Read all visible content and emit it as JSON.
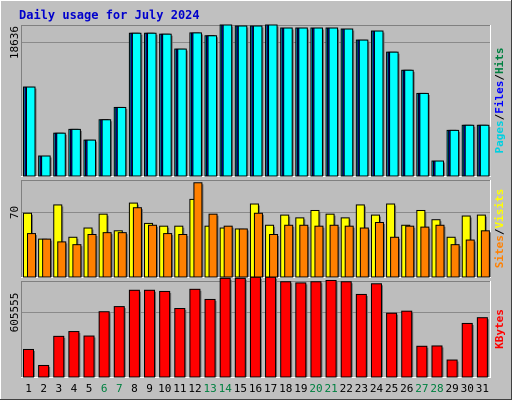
{
  "chart_data": [
    {
      "type": "bar",
      "title": "Daily usage for July 2024",
      "categories": [
        "1",
        "2",
        "3",
        "4",
        "5",
        "6",
        "7",
        "8",
        "9",
        "10",
        "11",
        "12",
        "13",
        "14",
        "15",
        "16",
        "17",
        "18",
        "19",
        "20",
        "21",
        "22",
        "23",
        "24",
        "25",
        "26",
        "27",
        "28",
        "29",
        "30",
        "31"
      ],
      "weekend_days": [
        "6",
        "7",
        "13",
        "14",
        "20",
        "21",
        "27",
        "28"
      ],
      "colors": {
        "title": "#0000cc",
        "weekday_tick": "#000000",
        "weekend_tick": "#008040",
        "background": "#c0c0c0",
        "plot_bg": "#bdbdbd",
        "sep_dark": "#808080"
      },
      "panels": [
        {
          "id": "pages-files-hits",
          "ytick_label": "18636",
          "ytick_value": 18636,
          "ylim": [
            0,
            21000
          ],
          "side_labels": [
            {
              "text": "Pages",
              "color": "#00d0e0"
            },
            {
              "text": "/",
              "color": "#000000"
            },
            {
              "text": "Files",
              "color": "#0000ff"
            },
            {
              "text": "/",
              "color": "#000000"
            },
            {
              "text": "Hits",
              "color": "#008040"
            }
          ],
          "series": [
            {
              "name": "Hits",
              "color": "#00e0ff",
              "values": [
                12370,
                2780,
                5950,
                6480,
                4990,
                7820,
                9530,
                19850,
                19850,
                19720,
                17650,
                19900,
                19500,
                21000,
                20860,
                20860,
                21000,
                20580,
                20580,
                20580,
                20580,
                20440,
                18900,
                20160,
                17220,
                14700,
                11480,
                2080,
                6340,
                7050,
                7050
              ]
            },
            {
              "name": "Files",
              "color": "#0000ff",
              "values": [
                12370,
                2780,
                5950,
                6480,
                4990,
                7820,
                9530,
                19850,
                19850,
                19720,
                17650,
                19900,
                19500,
                21000,
                20860,
                20860,
                21000,
                20580,
                20580,
                20580,
                20580,
                20440,
                18900,
                20160,
                17220,
                14700,
                11480,
                2080,
                6340,
                7050,
                7050
              ]
            },
            {
              "name": "Pages",
              "color": "#00ffff",
              "values": [
                12370,
                2780,
                5950,
                6480,
                4990,
                7820,
                9530,
                19850,
                19850,
                19720,
                17650,
                19900,
                19500,
                21000,
                20860,
                20860,
                21000,
                20580,
                20580,
                20580,
                20580,
                20440,
                18900,
                20160,
                17220,
                14700,
                11480,
                2080,
                6340,
                7050,
                7050
              ]
            }
          ]
        },
        {
          "id": "visits-sites",
          "ytick_label": "70",
          "ytick_value": 70,
          "ylim": [
            0,
            105
          ],
          "side_labels": [
            {
              "text": "Sites",
              "color": "#ff8000"
            },
            {
              "text": "/",
              "color": "#000000"
            },
            {
              "text": "Visits",
              "color": "#ffff00"
            }
          ],
          "series": [
            {
              "name": "Visits",
              "color": "#ffff00",
              "values": [
                69,
                41,
                78,
                43,
                53,
                68,
                50,
                80,
                58,
                55,
                55,
                84,
                55,
                53,
                52,
                79,
                56,
                67,
                64,
                72,
                68,
                64,
                78,
                67,
                79,
                56,
                72,
                62,
                43,
                66,
                67
              ]
            },
            {
              "name": "Sites",
              "color": "#ff8000",
              "values": [
                47,
                41,
                38,
                35,
                46,
                48,
                48,
                75,
                56,
                47,
                46,
                102,
                68,
                55,
                52,
                69,
                46,
                56,
                56,
                55,
                56,
                55,
                53,
                59,
                43,
                55,
                54,
                56,
                35,
                40,
                50
              ]
            }
          ]
        },
        {
          "id": "kbytes",
          "ytick_label": "605555",
          "ytick_value": 605555,
          "ylim": [
            0,
            900000
          ],
          "side_labels": [
            {
              "text": "KBytes",
              "color": "#ff0000"
            }
          ],
          "series": [
            {
              "name": "KBytes",
              "color": "#ff0000",
              "values": [
                258000,
                108000,
                381000,
                426000,
                384000,
                612000,
                660000,
                813000,
                813000,
                802000,
                642000,
                822000,
                727000,
                925000,
                925000,
                935000,
                935000,
                893000,
                882000,
                893000,
                905000,
                893000,
                774000,
                874000,
                598000,
                617000,
                288000,
                291000,
                159000,
                502000,
                556000
              ]
            }
          ]
        }
      ]
    }
  ]
}
